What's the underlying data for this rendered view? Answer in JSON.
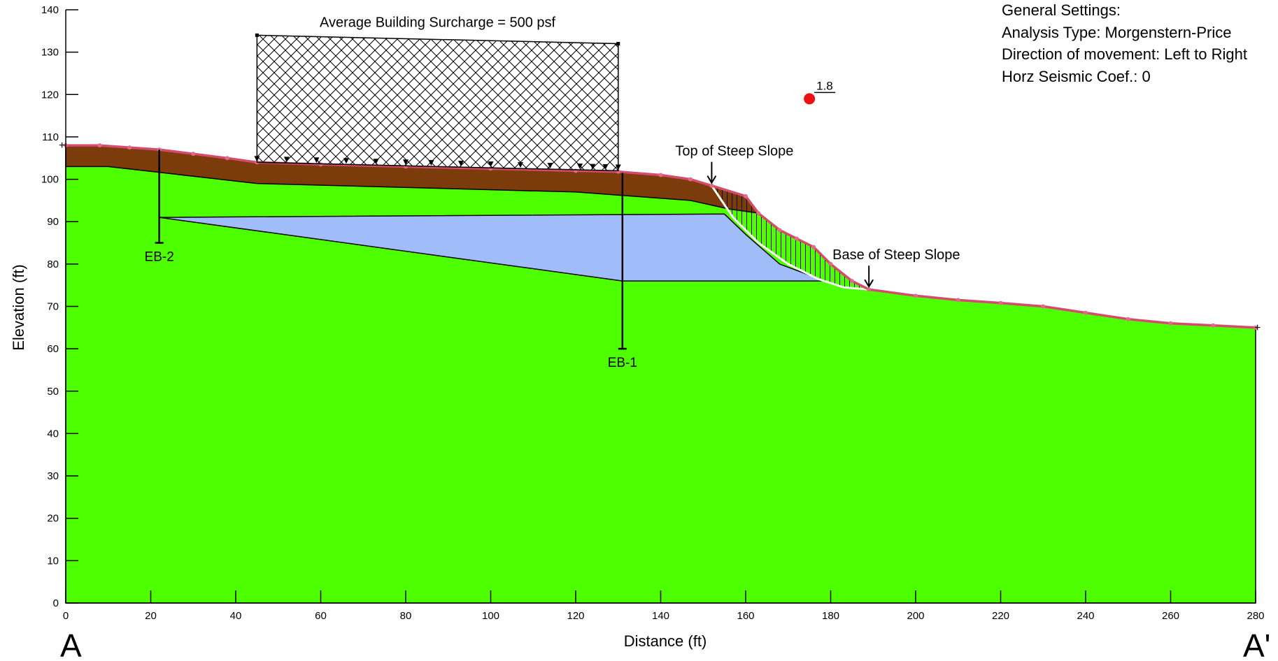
{
  "colors": {
    "ground": "#4dff00",
    "fill_layer": "#7b3b0a",
    "water_lens": "#a0bdfa",
    "surface_line": "#d64a6b",
    "surface_points": "#e06a88",
    "critical_point": "#ee1111",
    "slip_surface": "#ffffff",
    "end_markers": "#2e8b2e"
  },
  "settings": {
    "heading": "General Settings:",
    "analysis_type": "Analysis Type: Morgenstern-Price",
    "direction": "Direction of movement: Left to Right",
    "seismic": "Horz Seismic Coef.: 0"
  },
  "section_labels": {
    "start": "A",
    "end": "A'"
  },
  "chart_data": {
    "type": "diagram",
    "xlabel": "Distance (ft)",
    "ylabel": "Elevation (ft)",
    "xlim": [
      0,
      280
    ],
    "ylim": [
      0,
      140
    ],
    "x_ticks": [
      0,
      20,
      40,
      60,
      80,
      100,
      120,
      140,
      160,
      180,
      200,
      220,
      240,
      260,
      280
    ],
    "y_ticks": [
      0,
      10,
      20,
      30,
      40,
      50,
      60,
      70,
      80,
      90,
      100,
      110,
      120,
      130,
      140
    ],
    "x_tick_labels": [
      "0",
      "20",
      "40",
      "60",
      "80",
      "100",
      "120",
      "140",
      "160",
      "180",
      "200",
      "220",
      "240",
      "260",
      "280"
    ],
    "y_tick_labels": [
      "0",
      "10",
      "20",
      "30",
      "40",
      "50",
      "60",
      "70",
      "80",
      "90",
      "100",
      "110",
      "120",
      "130",
      "140"
    ],
    "ground_surface": [
      [
        0,
        108
      ],
      [
        8,
        108
      ],
      [
        15,
        107.5
      ],
      [
        22,
        107
      ],
      [
        30,
        106
      ],
      [
        38,
        105
      ],
      [
        45,
        104
      ],
      [
        60,
        103.5
      ],
      [
        80,
        103
      ],
      [
        100,
        102.5
      ],
      [
        120,
        102
      ],
      [
        130,
        101.8
      ],
      [
        140,
        101
      ],
      [
        147,
        100
      ],
      [
        152,
        98.5
      ],
      [
        160,
        96
      ],
      [
        163,
        92
      ],
      [
        168,
        88
      ],
      [
        172,
        86
      ],
      [
        176,
        84
      ],
      [
        180,
        80
      ],
      [
        185,
        76
      ],
      [
        189,
        74
      ],
      [
        200,
        72.5
      ],
      [
        210,
        71.5
      ],
      [
        220,
        70.8
      ],
      [
        230,
        70
      ],
      [
        240,
        68.5
      ],
      [
        250,
        67
      ],
      [
        260,
        66
      ],
      [
        270,
        65.5
      ],
      [
        280,
        65
      ]
    ],
    "fill_base": [
      [
        0,
        103
      ],
      [
        10,
        103
      ],
      [
        45,
        99
      ],
      [
        120,
        97
      ],
      [
        147,
        95
      ],
      [
        156,
        93
      ],
      [
        163,
        92
      ]
    ],
    "water_lens": [
      [
        22,
        91
      ],
      [
        155,
        91.8
      ],
      [
        160,
        87
      ],
      [
        168,
        80
      ],
      [
        176,
        77
      ],
      [
        178,
        76
      ],
      [
        131,
        76
      ],
      [
        22,
        91
      ]
    ],
    "slip_surface": [
      [
        152,
        98.5
      ],
      [
        157,
        91
      ],
      [
        163,
        85
      ],
      [
        170,
        80
      ],
      [
        177,
        76.5
      ],
      [
        183,
        74.5
      ],
      [
        189,
        74
      ]
    ],
    "surcharge": {
      "label": "Average Building Surcharge = 500 psf",
      "x_start": 45,
      "x_end": 130,
      "top_left": 134,
      "top_right": 132,
      "base_left": 104,
      "base_right": 102,
      "arrow_x": [
        45,
        52,
        59,
        66,
        73,
        80,
        86,
        93,
        100,
        107,
        114,
        121,
        124,
        127,
        130
      ]
    },
    "borings": [
      {
        "name": "EB-2",
        "x": 22,
        "top": 107,
        "bottom": 85
      },
      {
        "name": "EB-1",
        "x": 131,
        "top": 101.5,
        "bottom": 60
      }
    ],
    "annotations": [
      {
        "text": "Top of Steep Slope",
        "x": 152,
        "y": 98.5
      },
      {
        "text": "Base of Steep Slope",
        "x": 189,
        "y": 74
      }
    ],
    "critical_center": {
      "x": 175,
      "y": 119,
      "label": "1.8"
    }
  }
}
